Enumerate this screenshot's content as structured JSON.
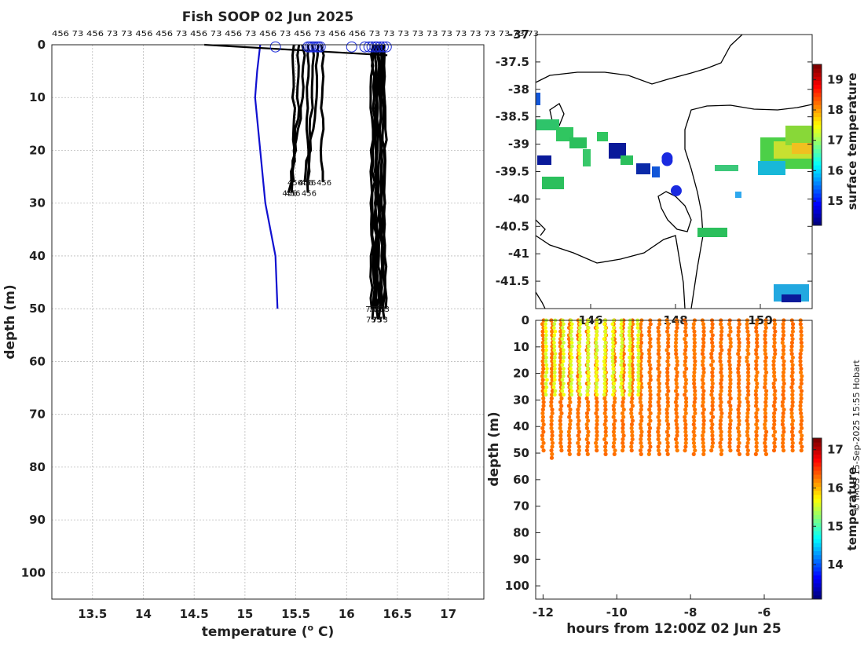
{
  "chart_data": [
    {
      "type": "line",
      "title": "Fish SOOP 02 Jun 2025",
      "xlabel": "temperature (",
      "xlabel_sup": "o",
      "xlabel_end": " C)",
      "ylabel": "depth (m)",
      "xlim": [
        13.1,
        17.35
      ],
      "ylim": [
        105,
        0
      ],
      "xticks": [
        13.5,
        14,
        14.5,
        15,
        15.5,
        16,
        16.5,
        17
      ],
      "yticks": [
        0,
        10,
        20,
        30,
        40,
        50,
        60,
        70,
        80,
        90,
        100
      ],
      "grid": true,
      "top_labels": "456 73 456 73 73 456 456 73 456 73 456 73 456 73 456 73 456 456 73 73 73 73 73 73 73 73 73 73 73 73",
      "probe_labels": [
        "456",
        "73"
      ],
      "series": [
        {
          "name": "climatology",
          "color": "#1010d0",
          "points": [
            [
              15.15,
              0
            ],
            [
              15.12,
              5
            ],
            [
              15.1,
              10
            ],
            [
              15.15,
              20
            ],
            [
              15.2,
              30
            ],
            [
              15.3,
              40
            ],
            [
              15.32,
              50
            ]
          ]
        },
        {
          "name": "transit",
          "color": "#000000",
          "points": [
            [
              14.6,
              0
            ],
            [
              16.4,
              2
            ]
          ]
        }
      ],
      "profile_groups": [
        {
          "name": "shallow-profiles",
          "color": "#000000",
          "x_range": [
            15.48,
            15.76
          ],
          "max_depth": 29
        },
        {
          "name": "deep-profiles",
          "color": "#000000",
          "x_range": [
            16.25,
            16.38
          ],
          "max_depth": 53
        }
      ],
      "surface_markers_x": [
        15.3,
        15.62,
        15.64,
        15.66,
        15.68,
        15.7,
        15.72,
        15.74,
        16.05,
        16.18,
        16.22,
        16.25,
        16.28,
        16.3,
        16.33,
        16.36,
        16.39
      ]
    },
    {
      "type": "heatmap",
      "subtype": "map",
      "ylim": [
        -42,
        -37
      ],
      "yticks": [
        -37,
        -37.5,
        -38,
        -38.5,
        -39,
        -39.5,
        -40,
        -40.5,
        -41,
        -41.5
      ],
      "xtick_labels": [
        "146",
        "148",
        "150"
      ],
      "colorbar": {
        "label": "surface temperature",
        "range": [
          14.2,
          19.5
        ],
        "ticks": [
          15,
          16,
          17,
          18,
          19
        ]
      },
      "stations": [
        [
          -39.25,
          0.58
        ],
        [
          -39.3,
          0.58
        ],
        [
          -39.85,
          0.62
        ]
      ]
    },
    {
      "type": "scatter",
      "xlabel": "hours from 12:00Z 02 Jun 25",
      "ylabel": "depth (m)",
      "xlim": [
        -12.2,
        -4.7
      ],
      "ylim": [
        105,
        0
      ],
      "xticks": [
        -12,
        -10,
        -8,
        -6
      ],
      "yticks": [
        0,
        10,
        20,
        30,
        40,
        50,
        60,
        70,
        80,
        90,
        100
      ],
      "colorbar": {
        "label": "temperature",
        "range": [
          13.1,
          17.3
        ],
        "ticks": [
          14,
          15,
          16,
          17
        ]
      },
      "shallow_casts": {
        "count": 12,
        "x_range": [
          -12,
          -9.5
        ],
        "max_depth": 29,
        "temp": 15.6
      },
      "deep_casts": {
        "count": 30,
        "x_range": [
          -12,
          -5
        ],
        "max_depth": 52,
        "temp": 16.3
      }
    }
  ],
  "credit": "© IMOS 15-Sep-2025 15:55 Hobart"
}
